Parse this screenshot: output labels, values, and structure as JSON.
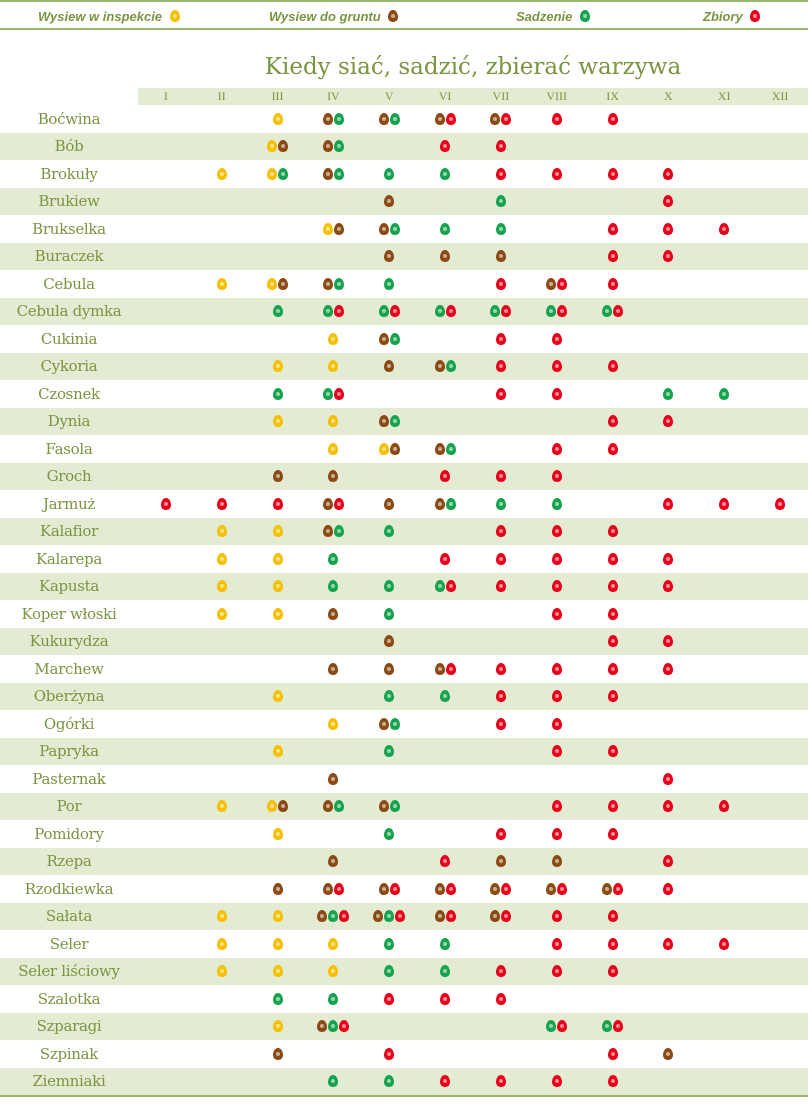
{
  "legend": [
    {
      "label": "Wysiew w inspekcie",
      "code": "y"
    },
    {
      "label": "Wysiew do gruntu",
      "code": "b"
    },
    {
      "label": "Sadzenie",
      "code": "g"
    },
    {
      "label": "Zbiory",
      "code": "r"
    }
  ],
  "colors": {
    "y": "#f5c000",
    "b": "#8b4a14",
    "g": "#16a34e",
    "r": "#e8001a"
  },
  "title": "Kiedy siać, sadzić, zbierać warzywa",
  "months": [
    "I",
    "II",
    "III",
    "IV",
    "V",
    "VI",
    "VII",
    "VIII",
    "IX",
    "X",
    "XI",
    "XII"
  ],
  "rows": [
    {
      "name": "Boćwina",
      "cells": [
        "",
        "",
        "y",
        "bg",
        "bg",
        "br",
        "br",
        "r",
        "r",
        "",
        "",
        ""
      ]
    },
    {
      "name": "Bób",
      "cells": [
        "",
        "",
        "yb",
        "bg",
        "",
        "r",
        "r",
        "",
        "",
        "",
        "",
        ""
      ]
    },
    {
      "name": "Brokuły",
      "cells": [
        "",
        "y",
        "yg",
        "bg",
        "g",
        "g",
        "r",
        "r",
        "r",
        "r",
        "",
        ""
      ]
    },
    {
      "name": "Brukiew",
      "cells": [
        "",
        "",
        "",
        "",
        "b",
        "",
        "g",
        "",
        "",
        "r",
        "",
        ""
      ]
    },
    {
      "name": "Brukselka",
      "cells": [
        "",
        "",
        "",
        "yb",
        "bg",
        "g",
        "g",
        "",
        "r",
        "r",
        "r",
        ""
      ]
    },
    {
      "name": "Buraczek",
      "cells": [
        "",
        "",
        "",
        "",
        "b",
        "b",
        "b",
        "",
        "r",
        "r",
        "",
        ""
      ]
    },
    {
      "name": "Cebula",
      "cells": [
        "",
        "y",
        "yb",
        "bg",
        "g",
        "",
        "r",
        "br",
        "r",
        "",
        "",
        ""
      ]
    },
    {
      "name": "Cebula dymka",
      "cells": [
        "",
        "",
        "g",
        "gr",
        "gr",
        "gr",
        "gr",
        "gr",
        "gr",
        "",
        "",
        ""
      ]
    },
    {
      "name": "Cukinia",
      "cells": [
        "",
        "",
        "",
        "y",
        "bg",
        "",
        "r",
        "r",
        "",
        "",
        "",
        ""
      ]
    },
    {
      "name": "Cykoria",
      "cells": [
        "",
        "",
        "y",
        "y",
        "b",
        "bg",
        "r",
        "r",
        "r",
        "",
        "",
        ""
      ]
    },
    {
      "name": "Czosnek",
      "cells": [
        "",
        "",
        "g",
        "gr",
        "",
        "",
        "r",
        "r",
        "",
        "g",
        "g",
        ""
      ]
    },
    {
      "name": "Dynia",
      "cells": [
        "",
        "",
        "y",
        "y",
        "bg",
        "",
        "",
        "",
        "r",
        "r",
        "",
        ""
      ]
    },
    {
      "name": "Fasola",
      "cells": [
        "",
        "",
        "",
        "y",
        "yb",
        "bg",
        "",
        "r",
        "r",
        "",
        "",
        ""
      ]
    },
    {
      "name": "Groch",
      "cells": [
        "",
        "",
        "b",
        "b",
        "",
        "r",
        "r",
        "r",
        "",
        "",
        "",
        ""
      ]
    },
    {
      "name": "Jarmuż",
      "cells": [
        "r",
        "r",
        "r",
        "br",
        "b",
        "bg",
        "g",
        "g",
        "",
        "r",
        "r",
        "r"
      ]
    },
    {
      "name": "Kalafior",
      "cells": [
        "",
        "y",
        "y",
        "bg",
        "g",
        "",
        "r",
        "r",
        "r",
        "",
        "",
        ""
      ]
    },
    {
      "name": "Kalarepa",
      "cells": [
        "",
        "y",
        "y",
        "g",
        "",
        "r",
        "r",
        "r",
        "r",
        "r",
        "",
        ""
      ]
    },
    {
      "name": "Kapusta",
      "cells": [
        "",
        "y",
        "y",
        "g",
        "g",
        "gr",
        "r",
        "r",
        "r",
        "r",
        "",
        ""
      ]
    },
    {
      "name": "Koper włoski",
      "cells": [
        "",
        "y",
        "y",
        "b",
        "g",
        "",
        "",
        "r",
        "r",
        "",
        "",
        ""
      ]
    },
    {
      "name": "Kukurydza",
      "cells": [
        "",
        "",
        "",
        "",
        "b",
        "",
        "",
        "",
        "r",
        "r",
        "",
        ""
      ]
    },
    {
      "name": "Marchew",
      "cells": [
        "",
        "",
        "",
        "b",
        "b",
        "br",
        "r",
        "r",
        "r",
        "r",
        "",
        ""
      ]
    },
    {
      "name": "Oberżyna",
      "cells": [
        "",
        "",
        "y",
        "",
        "g",
        "g",
        "r",
        "r",
        "r",
        "",
        "",
        ""
      ]
    },
    {
      "name": "Ogórki",
      "cells": [
        "",
        "",
        "",
        "y",
        "bg",
        "",
        "r",
        "r",
        "",
        "",
        "",
        ""
      ]
    },
    {
      "name": "Papryka",
      "cells": [
        "",
        "",
        "y",
        "",
        "g",
        "",
        "",
        "r",
        "r",
        "",
        "",
        ""
      ]
    },
    {
      "name": "Pasternak",
      "cells": [
        "",
        "",
        "",
        "b",
        "",
        "",
        "",
        "",
        "",
        "r",
        "",
        ""
      ]
    },
    {
      "name": "Por",
      "cells": [
        "",
        "y",
        "yb",
        "bg",
        "bg",
        "",
        "",
        "r",
        "r",
        "r",
        "r",
        ""
      ]
    },
    {
      "name": "Pomidory",
      "cells": [
        "",
        "",
        "y",
        "",
        "g",
        "",
        "r",
        "r",
        "r",
        "",
        "",
        ""
      ]
    },
    {
      "name": "Rzepa",
      "cells": [
        "",
        "",
        "",
        "b",
        "",
        "r",
        "b",
        "b",
        "",
        "r",
        "",
        ""
      ]
    },
    {
      "name": "Rzodkiewka",
      "cells": [
        "",
        "",
        "b",
        "br",
        "br",
        "br",
        "br",
        "br",
        "br",
        "r",
        "",
        ""
      ]
    },
    {
      "name": "Sałata",
      "cells": [
        "",
        "y",
        "y",
        "bgr",
        "bgr",
        "br",
        "br",
        "r",
        "r",
        "",
        "",
        ""
      ]
    },
    {
      "name": "Seler",
      "cells": [
        "",
        "y",
        "y",
        "y",
        "g",
        "g",
        "",
        "r",
        "r",
        "r",
        "r",
        ""
      ]
    },
    {
      "name": "Seler liściowy",
      "cells": [
        "",
        "y",
        "y",
        "y",
        "g",
        "g",
        "r",
        "r",
        "r",
        "",
        "",
        ""
      ]
    },
    {
      "name": "Szalotka",
      "cells": [
        "",
        "",
        "g",
        "g",
        "r",
        "r",
        "r",
        "",
        "",
        "",
        "",
        ""
      ]
    },
    {
      "name": "Szparagi",
      "cells": [
        "",
        "",
        "y",
        "bgr",
        "",
        "",
        "",
        "gr",
        "gr",
        "",
        "",
        ""
      ]
    },
    {
      "name": "Szpinak",
      "cells": [
        "",
        "",
        "b",
        "",
        "r",
        "",
        "",
        "",
        "r",
        "b",
        "",
        ""
      ]
    },
    {
      "name": "Ziemniaki",
      "cells": [
        "",
        "",
        "",
        "g",
        "g",
        "r",
        "r",
        "r",
        "r",
        "",
        "",
        ""
      ]
    }
  ]
}
